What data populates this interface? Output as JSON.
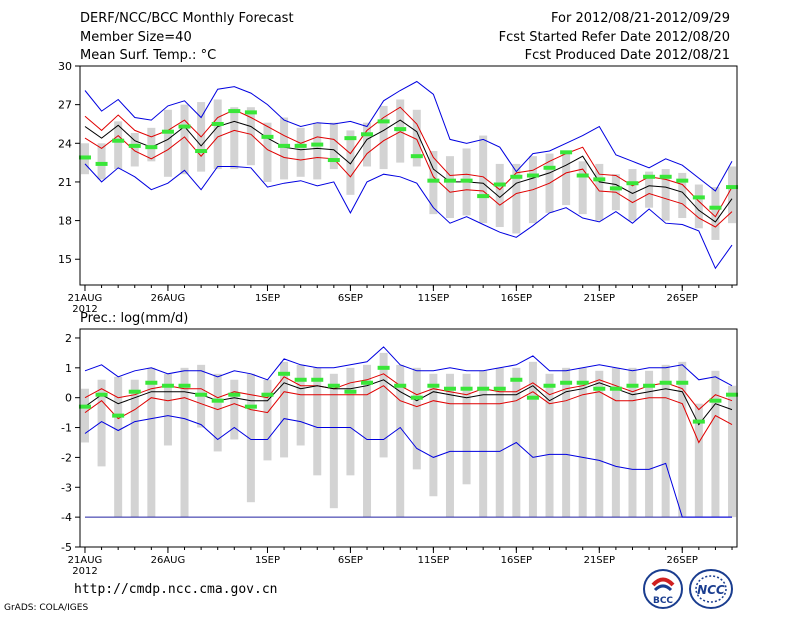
{
  "header": {
    "left": [
      "DERF/NCC/BCC Monthly Forecast",
      "Member Size=40",
      "Mean Surf. Temp.: °C"
    ],
    "right": [
      "For 2012/08/21-2012/09/29",
      "Fcst Started Refer Date 2012/08/20",
      "Fcst Produced Date 2012/08/21"
    ]
  },
  "precip_title": "Prec.: log(mm/d)",
  "footer": {
    "url": "http://cmdp.ncc.cma.gov.cn",
    "credit": "GrADS: COLA/IGES"
  },
  "logos": {
    "bcc": "BCC",
    "ncc": "NCC"
  },
  "colors": {
    "box": "#d3d3d3",
    "mean": "#000000",
    "spread": "#e00000",
    "extreme": "#0000e0",
    "observed": "#39e639"
  },
  "chart_data": [
    {
      "type": "line",
      "title": "Mean Surf. Temp.: °C",
      "ylim": [
        13,
        30
      ],
      "yticks": [
        15,
        18,
        21,
        24,
        27,
        30
      ],
      "xtick_labels": [
        "21AUG",
        "26AUG",
        "1SEP",
        "6SEP",
        "11SEP",
        "16SEP",
        "21SEP",
        "26SEP"
      ],
      "xtick_days": [
        1,
        6,
        12,
        17,
        22,
        27,
        32,
        37
      ],
      "year_label": "2012",
      "days": 40,
      "series": {
        "max": [
          28.1,
          26.5,
          27.4,
          26.0,
          25.8,
          26.9,
          27.3,
          26.0,
          28.2,
          28.4,
          27.9,
          27.0,
          25.8,
          25.3,
          25.6,
          25.5,
          25.7,
          25.3,
          27.3,
          28.1,
          28.8,
          27.8,
          24.3,
          24.0,
          24.3,
          23.7,
          21.8,
          23.2,
          23.4,
          24.0,
          24.6,
          25.3,
          23.1,
          22.6,
          22.1,
          22.8,
          22.3,
          21.3,
          20.3,
          22.6
        ],
        "upper": [
          26.1,
          25.0,
          26.2,
          25.0,
          24.5,
          25.0,
          25.8,
          24.5,
          26.0,
          26.6,
          26.0,
          25.3,
          24.6,
          24.0,
          24.5,
          24.3,
          23.2,
          25.0,
          26.0,
          26.8,
          25.5,
          22.9,
          21.5,
          21.6,
          21.4,
          20.4,
          21.7,
          21.9,
          22.6,
          23.2,
          23.7,
          21.6,
          21.5,
          20.7,
          21.4,
          21.2,
          20.8,
          19.5,
          18.3,
          20.6
        ],
        "mean": [
          25.3,
          24.4,
          25.4,
          24.2,
          23.7,
          24.3,
          25.3,
          23.8,
          25.3,
          25.7,
          25.3,
          24.4,
          23.7,
          23.5,
          23.6,
          23.5,
          22.4,
          24.3,
          25.0,
          25.8,
          24.9,
          22.0,
          21.0,
          21.0,
          20.9,
          19.8,
          20.9,
          21.3,
          21.7,
          22.3,
          23.0,
          21.0,
          20.8,
          20.1,
          20.7,
          20.6,
          20.2,
          18.8,
          17.9,
          19.7
        ],
        "lower": [
          24.4,
          23.6,
          24.6,
          23.4,
          22.8,
          23.5,
          24.5,
          23.0,
          24.5,
          25.0,
          24.7,
          23.5,
          22.9,
          22.7,
          22.9,
          22.8,
          21.4,
          23.2,
          24.2,
          24.9,
          24.3,
          21.4,
          20.2,
          20.4,
          20.3,
          19.2,
          20.1,
          20.4,
          20.9,
          21.7,
          22.0,
          20.3,
          20.2,
          19.4,
          20.1,
          19.7,
          19.3,
          18.2,
          17.5,
          18.7
        ],
        "min": [
          22.4,
          21.0,
          22.1,
          21.4,
          20.4,
          20.9,
          21.9,
          20.4,
          22.2,
          22.2,
          22.1,
          20.6,
          20.9,
          21.1,
          20.7,
          21.0,
          18.6,
          21.0,
          21.6,
          21.4,
          20.9,
          19.0,
          17.8,
          18.3,
          17.7,
          17.1,
          16.7,
          17.6,
          18.6,
          19.0,
          18.2,
          17.9,
          18.7,
          17.8,
          18.9,
          17.8,
          17.7,
          17.2,
          14.3,
          16.1
        ],
        "box_low": [
          21.6,
          21.2,
          22.0,
          22.2,
          22.6,
          21.4,
          21.6,
          21.8,
          22.0,
          22.0,
          22.3,
          21.0,
          21.2,
          21.4,
          21.2,
          22.0,
          20.0,
          22.2,
          22.0,
          22.5,
          22.2,
          18.5,
          18.2,
          18.4,
          17.8,
          17.5,
          17.0,
          17.8,
          18.6,
          19.2,
          18.5,
          18.0,
          18.8,
          18.0,
          19.0,
          18.0,
          18.2,
          17.4,
          16.5,
          17.8
        ],
        "box_high": [
          24.0,
          24.0,
          25.7,
          24.8,
          25.2,
          26.6,
          27.0,
          27.2,
          27.4,
          26.8,
          26.8,
          25.6,
          26.0,
          25.2,
          25.6,
          25.6,
          25.0,
          25.6,
          26.9,
          27.4,
          26.6,
          23.4,
          23.0,
          23.6,
          24.6,
          22.4,
          22.4,
          23.0,
          23.2,
          23.4,
          22.6,
          22.4,
          21.6,
          22.0,
          21.8,
          22.0,
          21.7,
          20.8,
          20.6,
          22.2
        ],
        "observed": [
          22.9,
          22.4,
          24.2,
          23.8,
          23.7,
          24.9,
          25.3,
          23.4,
          25.5,
          26.5,
          26.4,
          24.5,
          23.8,
          23.8,
          23.9,
          22.7,
          24.4,
          24.7,
          25.7,
          25.1,
          23.0,
          21.1,
          21.1,
          21.1,
          19.9,
          20.8,
          21.4,
          21.5,
          22.1,
          23.3,
          21.5,
          21.2,
          20.5,
          20.9,
          21.4,
          21.4,
          21.1,
          19.8,
          19.0,
          20.6
        ]
      }
    },
    {
      "type": "line",
      "title": "Prec.: log(mm/d)",
      "ylim": [
        -5,
        2.3
      ],
      "yticks": [
        -5,
        -4,
        -3,
        -2,
        -1,
        0,
        1,
        2
      ],
      "xtick_labels": [
        "21AUG",
        "26AUG",
        "1SEP",
        "6SEP",
        "11SEP",
        "16SEP",
        "21SEP",
        "26SEP"
      ],
      "xtick_days": [
        1,
        6,
        12,
        17,
        22,
        27,
        32,
        37
      ],
      "year_label": "2012",
      "days": 40,
      "series": {
        "max": [
          0.9,
          1.1,
          0.7,
          0.9,
          1.0,
          0.8,
          0.9,
          0.9,
          0.7,
          0.9,
          0.8,
          0.6,
          1.3,
          1.1,
          1.0,
          1.0,
          1.1,
          1.2,
          1.7,
          1.1,
          0.9,
          0.9,
          1.0,
          0.9,
          0.9,
          1.0,
          1.1,
          1.4,
          0.9,
          0.9,
          1.0,
          1.1,
          1.0,
          0.9,
          1.0,
          1.0,
          1.1,
          0.6,
          0.7,
          0.4
        ],
        "upper": [
          0.0,
          0.3,
          0.0,
          0.1,
          0.3,
          0.4,
          0.3,
          0.3,
          0.0,
          0.2,
          0.1,
          0.0,
          0.7,
          0.4,
          0.4,
          0.3,
          0.5,
          0.6,
          0.8,
          0.4,
          0.1,
          0.3,
          0.2,
          0.1,
          0.3,
          0.2,
          0.2,
          0.5,
          0.1,
          0.3,
          0.4,
          0.6,
          0.4,
          0.2,
          0.4,
          0.5,
          0.3,
          -0.4,
          0.1,
          -0.1
        ],
        "mean": [
          -0.3,
          0.1,
          -0.2,
          0.0,
          0.2,
          0.2,
          0.2,
          0.1,
          -0.1,
          0.0,
          -0.1,
          -0.1,
          0.5,
          0.3,
          0.4,
          0.3,
          0.3,
          0.4,
          0.6,
          0.2,
          -0.1,
          0.2,
          0.1,
          0.0,
          0.1,
          0.1,
          0.1,
          0.4,
          -0.1,
          0.2,
          0.3,
          0.5,
          0.3,
          0.1,
          0.2,
          0.3,
          0.2,
          -0.9,
          -0.2,
          -0.4
        ],
        "lower": [
          -0.5,
          -0.1,
          -0.7,
          -0.4,
          0.0,
          -0.1,
          0.0,
          -0.2,
          -0.4,
          -0.2,
          -0.4,
          -0.5,
          0.2,
          0.1,
          0.1,
          0.1,
          0.1,
          0.1,
          0.4,
          -0.1,
          -0.3,
          -0.1,
          -0.2,
          -0.2,
          -0.2,
          -0.2,
          -0.1,
          0.2,
          -0.2,
          -0.1,
          0.1,
          0.2,
          -0.1,
          -0.1,
          0.0,
          0.0,
          -0.2,
          -1.5,
          -0.6,
          -0.9
        ],
        "min": [
          -1.2,
          -0.8,
          -1.1,
          -0.8,
          -0.7,
          -0.6,
          -0.7,
          -0.9,
          -1.4,
          -1.0,
          -1.4,
          -1.4,
          -0.7,
          -0.8,
          -1.0,
          -1.0,
          -1.0,
          -1.4,
          -1.4,
          -1.0,
          -1.7,
          -2.0,
          -1.8,
          -1.8,
          -1.8,
          -1.8,
          -1.5,
          -2.0,
          -1.9,
          -1.9,
          -2.0,
          -2.1,
          -2.3,
          -2.4,
          -2.4,
          -2.2,
          -4.0,
          -4.0,
          -4.0,
          -4.0
        ],
        "floor": -4.0,
        "box_low": [
          -1.5,
          -2.3,
          -4.0,
          -4.0,
          -4.0,
          -1.6,
          -4.0,
          -1.0,
          -1.8,
          -1.4,
          -3.5,
          -2.1,
          -2.0,
          -1.6,
          -2.6,
          -3.7,
          -2.6,
          -4.0,
          -2.0,
          -4.0,
          -2.4,
          -3.3,
          -4.0,
          -2.9,
          -4.0,
          -4.0,
          -4.0,
          -4.0,
          -4.0,
          -4.0,
          -4.0,
          -4.0,
          -4.0,
          -4.0,
          -4.0,
          -4.0,
          -4.0,
          -4.0,
          -4.0,
          -4.0
        ],
        "box_high": [
          0.3,
          0.6,
          0.7,
          0.6,
          1.0,
          0.8,
          1.0,
          1.1,
          0.8,
          0.6,
          0.8,
          0.6,
          1.2,
          1.1,
          1.0,
          0.8,
          1.0,
          1.1,
          1.5,
          1.1,
          1.0,
          0.8,
          0.8,
          0.8,
          0.9,
          1.0,
          1.0,
          1.2,
          0.8,
          1.0,
          1.0,
          0.9,
          1.0,
          1.0,
          0.9,
          1.1,
          1.2,
          -0.2,
          0.9,
          0.4
        ],
        "observed": [
          -0.3,
          0.1,
          -0.6,
          0.2,
          0.5,
          0.4,
          0.4,
          0.1,
          -0.1,
          0.1,
          -0.3,
          0.1,
          0.8,
          0.6,
          0.6,
          0.4,
          0.2,
          0.5,
          1.0,
          0.4,
          0.0,
          0.4,
          0.3,
          0.3,
          0.3,
          0.3,
          0.6,
          0.0,
          0.4,
          0.5,
          0.5,
          0.3,
          0.3,
          0.4,
          0.4,
          0.5,
          0.5,
          -0.8,
          -0.1,
          0.1
        ]
      }
    }
  ]
}
